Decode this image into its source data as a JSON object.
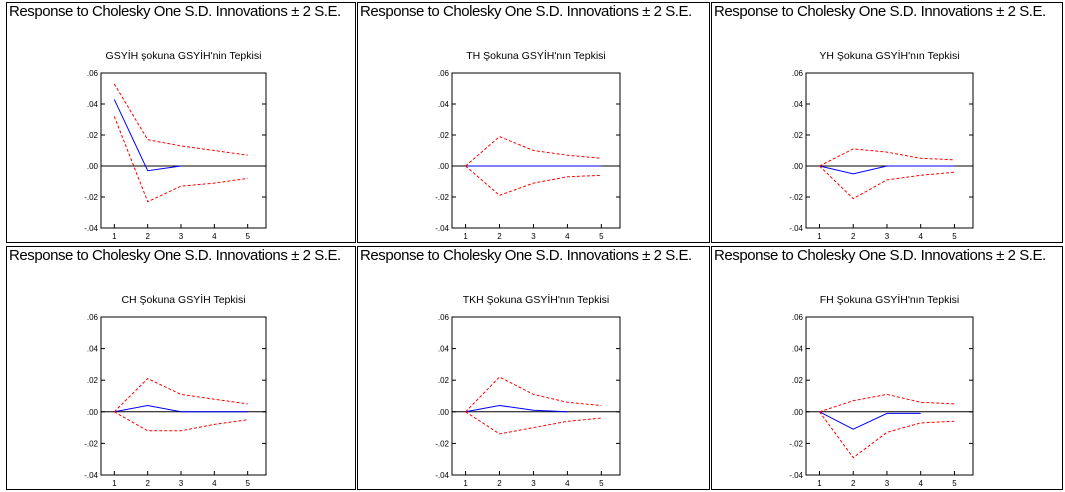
{
  "header_text": "Response to Cholesky One S.D. Innovations ± 2 S.E.",
  "chart_data": [
    {
      "type": "line",
      "title": "GSYİH şokuna GSYİH'nin Tepkisi",
      "x": [
        1,
        2,
        3,
        4,
        5
      ],
      "xlim": [
        0.6,
        5.55
      ],
      "ylim": [
        -0.04,
        0.06
      ],
      "yticks": [
        -0.04,
        -0.02,
        0.0,
        0.02,
        0.04,
        0.06
      ],
      "ytick_labels": [
        "-.04",
        "-.02",
        ".00",
        ".02",
        ".04",
        ".06"
      ],
      "xtick_labels": [
        "1",
        "2",
        "3",
        "4",
        "5"
      ],
      "series": [
        {
          "role": "response",
          "color": "#0000ff",
          "values": [
            0.043,
            -0.003,
            0.0,
            null,
            null
          ]
        },
        {
          "role": "upper",
          "color": "#ff0000",
          "values": [
            0.053,
            0.017,
            0.013,
            0.01,
            0.007
          ]
        },
        {
          "role": "lower",
          "color": "#ff0000",
          "values": [
            0.032,
            -0.023,
            -0.013,
            -0.011,
            -0.008
          ]
        }
      ]
    },
    {
      "type": "line",
      "title": "TH Şokuna GSYİH'nın Tepkisi",
      "x": [
        1,
        2,
        3,
        4,
        5
      ],
      "xlim": [
        0.6,
        5.55
      ],
      "ylim": [
        -0.04,
        0.06
      ],
      "yticks": [
        -0.04,
        -0.02,
        0.0,
        0.02,
        0.04,
        0.06
      ],
      "ytick_labels": [
        "-.04",
        "-.02",
        ".00",
        ".02",
        ".04",
        ".06"
      ],
      "xtick_labels": [
        "1",
        "2",
        "3",
        "4",
        "5"
      ],
      "series": [
        {
          "role": "response",
          "color": "#0000ff",
          "values": [
            0.0,
            0.0,
            0.0,
            0.0,
            0.0
          ]
        },
        {
          "role": "upper",
          "color": "#ff0000",
          "values": [
            0.0,
            0.019,
            0.01,
            0.007,
            0.005
          ]
        },
        {
          "role": "lower",
          "color": "#ff0000",
          "values": [
            0.0,
            -0.019,
            -0.011,
            -0.007,
            -0.006
          ]
        }
      ]
    },
    {
      "type": "line",
      "title": "YH Şokuna GSYİH'nın Tepkisi",
      "x": [
        1,
        2,
        3,
        4,
        5
      ],
      "xlim": [
        0.6,
        5.55
      ],
      "ylim": [
        -0.04,
        0.06
      ],
      "yticks": [
        -0.04,
        -0.02,
        0.0,
        0.02,
        0.04,
        0.06
      ],
      "ytick_labels": [
        "-.04",
        "-.02",
        ".00",
        ".02",
        ".04",
        ".06"
      ],
      "xtick_labels": [
        "1",
        "2",
        "3",
        "4",
        "5"
      ],
      "series": [
        {
          "role": "response",
          "color": "#0000ff",
          "values": [
            0.0,
            -0.005,
            0.0,
            0.0,
            0.0
          ]
        },
        {
          "role": "upper",
          "color": "#ff0000",
          "values": [
            0.0,
            0.011,
            0.009,
            0.005,
            0.004
          ]
        },
        {
          "role": "lower",
          "color": "#ff0000",
          "values": [
            0.0,
            -0.021,
            -0.009,
            -0.006,
            -0.004
          ]
        }
      ]
    },
    {
      "type": "line",
      "title": "CH Şokuna GSYİH Tepkisi",
      "x": [
        1,
        2,
        3,
        4,
        5
      ],
      "xlim": [
        0.6,
        5.55
      ],
      "ylim": [
        -0.04,
        0.06
      ],
      "yticks": [
        -0.04,
        -0.02,
        0.0,
        0.02,
        0.04,
        0.06
      ],
      "ytick_labels": [
        "-.04",
        "-.02",
        ".00",
        ".02",
        ".04",
        ".06"
      ],
      "xtick_labels": [
        "1",
        "2",
        "3",
        "4",
        "5"
      ],
      "series": [
        {
          "role": "response",
          "color": "#0000ff",
          "values": [
            0.0,
            0.004,
            0.0,
            0.0,
            0.0
          ]
        },
        {
          "role": "upper",
          "color": "#ff0000",
          "values": [
            0.0,
            0.021,
            0.011,
            0.008,
            0.005
          ]
        },
        {
          "role": "lower",
          "color": "#ff0000",
          "values": [
            0.0,
            -0.012,
            -0.012,
            -0.008,
            -0.005
          ]
        }
      ]
    },
    {
      "type": "line",
      "title": "TKH Şokuna GSYİH'nın Tepkisi",
      "x": [
        1,
        2,
        3,
        4,
        5
      ],
      "xlim": [
        0.6,
        5.55
      ],
      "ylim": [
        -0.04,
        0.06
      ],
      "yticks": [
        -0.04,
        -0.02,
        0.0,
        0.02,
        0.04,
        0.06
      ],
      "ytick_labels": [
        "-.04",
        "-.02",
        ".00",
        ".02",
        ".04",
        ".06"
      ],
      "xtick_labels": [
        "1",
        "2",
        "3",
        "4",
        "5"
      ],
      "series": [
        {
          "role": "response",
          "color": "#0000ff",
          "values": [
            0.0,
            0.004,
            0.001,
            0.0,
            null
          ]
        },
        {
          "role": "upper",
          "color": "#ff0000",
          "values": [
            0.0,
            0.022,
            0.011,
            0.006,
            0.004
          ]
        },
        {
          "role": "lower",
          "color": "#ff0000",
          "values": [
            0.0,
            -0.014,
            -0.01,
            -0.006,
            -0.004
          ]
        }
      ]
    },
    {
      "type": "line",
      "title": "FH Şokuna GSYİH'nın Tepkisi",
      "x": [
        1,
        2,
        3,
        4,
        5
      ],
      "xlim": [
        0.6,
        5.55
      ],
      "ylim": [
        -0.04,
        0.06
      ],
      "yticks": [
        -0.04,
        -0.02,
        0.0,
        0.02,
        0.04,
        0.06
      ],
      "ytick_labels": [
        "-.04",
        "-.02",
        ".00",
        ".02",
        ".04",
        ".06"
      ],
      "xtick_labels": [
        "1",
        "2",
        "3",
        "4",
        "5"
      ],
      "series": [
        {
          "role": "response",
          "color": "#0000ff",
          "values": [
            0.0,
            -0.011,
            -0.001,
            -0.001,
            null
          ]
        },
        {
          "role": "upper",
          "color": "#ff0000",
          "values": [
            0.0,
            0.007,
            0.011,
            0.006,
            0.005
          ]
        },
        {
          "role": "lower",
          "color": "#ff0000",
          "values": [
            0.0,
            -0.029,
            -0.013,
            -0.007,
            -0.006
          ]
        }
      ]
    }
  ]
}
